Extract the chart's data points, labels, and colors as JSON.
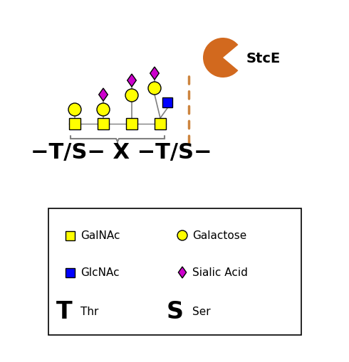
{
  "background_color": "#ffffff",
  "stce_label": "StcE",
  "colors": {
    "GalNAc": "#FFFF00",
    "Galactose": "#FFFF00",
    "GlcNAc": "#0000FF",
    "SialicAcid": "#CC00CC",
    "StcE": "#D2691E",
    "line": "#808080",
    "cleavage_line": "#CD853F",
    "brace": "#808080"
  },
  "legend": {
    "GalNAc_label": "GalNAc",
    "Galactose_label": "Galactose",
    "GlcNAc_label": "GlcNAc",
    "SialicAcid_label": "Sialic Acid",
    "Thr_label": "Thr",
    "Ser_label": "Ser"
  }
}
